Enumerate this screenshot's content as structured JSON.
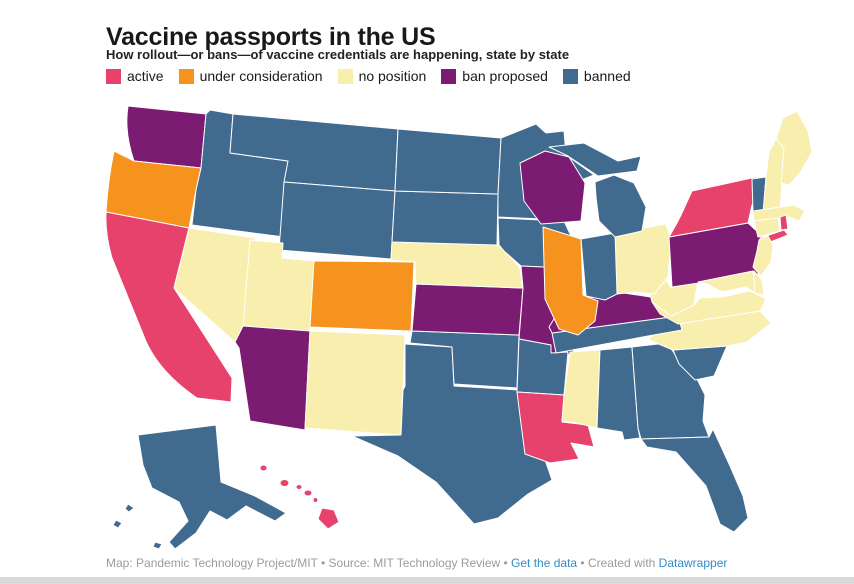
{
  "title": "Vaccine passports in the US",
  "subtitle": "How rollout—or bans—of vaccine credentials are happening, state by state",
  "legend": [
    {
      "label": "active",
      "color": "#e7426b"
    },
    {
      "label": "under consideration",
      "color": "#f6921e"
    },
    {
      "label": "no position",
      "color": "#f8eeae"
    },
    {
      "label": "ban proposed",
      "color": "#7b1b72"
    },
    {
      "label": "banned",
      "color": "#406a8e"
    }
  ],
  "footer": {
    "prefix": "Map: Pandemic Technology Project/MIT • Source: MIT Technology Review • ",
    "get_data_label": "Get the data",
    "created_with": " • Created with ",
    "datawrapper_label": "Datawrapper",
    "link_color": "#2e8fc7",
    "text_color": "#9b9b9b"
  },
  "chart_data": {
    "type": "choropleth-map",
    "region": "United States",
    "title": "Vaccine passports in the US",
    "subtitle": "How rollout—or bans—of vaccine credentials are happening, state by state",
    "categories": [
      "active",
      "under consideration",
      "no position",
      "ban proposed",
      "banned"
    ],
    "legend_position": "top",
    "states": [
      {
        "code": "WA",
        "name": "Washington",
        "status": "ban proposed"
      },
      {
        "code": "OR",
        "name": "Oregon",
        "status": "under consideration"
      },
      {
        "code": "CA",
        "name": "California",
        "status": "active"
      },
      {
        "code": "NV",
        "name": "Nevada",
        "status": "no position"
      },
      {
        "code": "ID",
        "name": "Idaho",
        "status": "banned"
      },
      {
        "code": "MT",
        "name": "Montana",
        "status": "banned"
      },
      {
        "code": "WY",
        "name": "Wyoming",
        "status": "banned"
      },
      {
        "code": "UT",
        "name": "Utah",
        "status": "no position"
      },
      {
        "code": "CO",
        "name": "Colorado",
        "status": "under consideration"
      },
      {
        "code": "AZ",
        "name": "Arizona",
        "status": "ban proposed"
      },
      {
        "code": "NM",
        "name": "New Mexico",
        "status": "no position"
      },
      {
        "code": "TX",
        "name": "Texas",
        "status": "banned"
      },
      {
        "code": "OK",
        "name": "Oklahoma",
        "status": "banned"
      },
      {
        "code": "KS",
        "name": "Kansas",
        "status": "ban proposed"
      },
      {
        "code": "NE",
        "name": "Nebraska",
        "status": "no position"
      },
      {
        "code": "SD",
        "name": "South Dakota",
        "status": "banned"
      },
      {
        "code": "ND",
        "name": "North Dakota",
        "status": "banned"
      },
      {
        "code": "MN",
        "name": "Minnesota",
        "status": "banned"
      },
      {
        "code": "IA",
        "name": "Iowa",
        "status": "banned"
      },
      {
        "code": "MO",
        "name": "Missouri",
        "status": "ban proposed"
      },
      {
        "code": "AR",
        "name": "Arkansas",
        "status": "banned"
      },
      {
        "code": "LA",
        "name": "Louisiana",
        "status": "active"
      },
      {
        "code": "MS",
        "name": "Mississippi",
        "status": "no position"
      },
      {
        "code": "AL",
        "name": "Alabama",
        "status": "banned"
      },
      {
        "code": "GA",
        "name": "Georgia",
        "status": "banned"
      },
      {
        "code": "FL",
        "name": "Florida",
        "status": "banned"
      },
      {
        "code": "SC",
        "name": "South Carolina",
        "status": "banned"
      },
      {
        "code": "NC",
        "name": "North Carolina",
        "status": "no position"
      },
      {
        "code": "TN",
        "name": "Tennessee",
        "status": "banned"
      },
      {
        "code": "KY",
        "name": "Kentucky",
        "status": "ban proposed"
      },
      {
        "code": "WV",
        "name": "West Virginia",
        "status": "no position"
      },
      {
        "code": "VA",
        "name": "Virginia",
        "status": "no position"
      },
      {
        "code": "OH",
        "name": "Ohio",
        "status": "no position"
      },
      {
        "code": "IN",
        "name": "Indiana",
        "status": "banned"
      },
      {
        "code": "IL",
        "name": "Illinois",
        "status": "under consideration"
      },
      {
        "code": "WI",
        "name": "Wisconsin",
        "status": "ban proposed"
      },
      {
        "code": "MI",
        "name": "Michigan",
        "status": "banned"
      },
      {
        "code": "PA",
        "name": "Pennsylvania",
        "status": "ban proposed"
      },
      {
        "code": "NY",
        "name": "New York",
        "status": "active"
      },
      {
        "code": "VT",
        "name": "Vermont",
        "status": "banned"
      },
      {
        "code": "NH",
        "name": "New Hampshire",
        "status": "no position"
      },
      {
        "code": "ME",
        "name": "Maine",
        "status": "no position"
      },
      {
        "code": "MA",
        "name": "Massachusetts",
        "status": "no position"
      },
      {
        "code": "RI",
        "name": "Rhode Island",
        "status": "active"
      },
      {
        "code": "CT",
        "name": "Connecticut",
        "status": "no position"
      },
      {
        "code": "NJ",
        "name": "New Jersey",
        "status": "no position"
      },
      {
        "code": "DE",
        "name": "Delaware",
        "status": "no position"
      },
      {
        "code": "MD",
        "name": "Maryland",
        "status": "no position"
      },
      {
        "code": "AK",
        "name": "Alaska",
        "status": "banned"
      },
      {
        "code": "HI",
        "name": "Hawaii",
        "status": "active"
      }
    ]
  }
}
